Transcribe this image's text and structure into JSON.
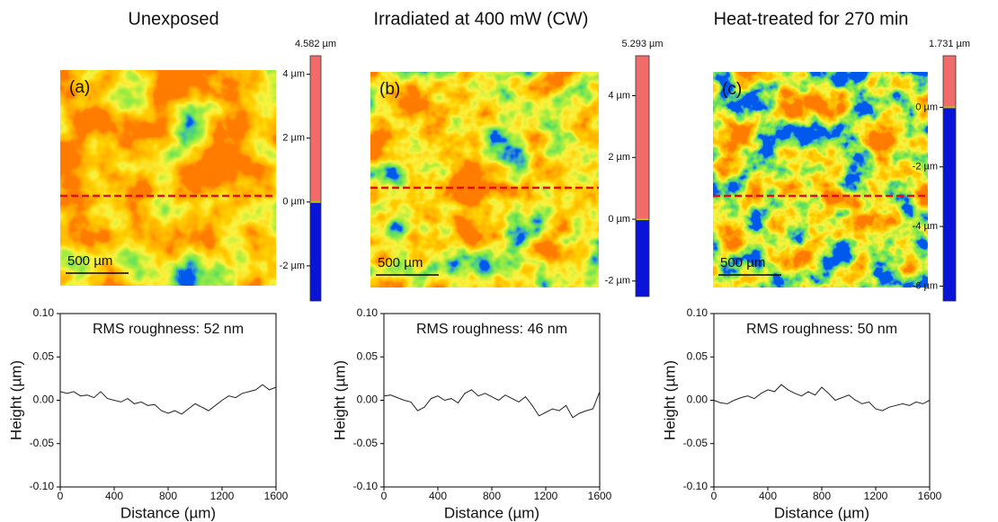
{
  "chart_data": [
    {
      "type": "line",
      "title": "Unexposed",
      "panel_label": "(a)",
      "scale_bar": "500 µm",
      "colorbar": {
        "max_label": "4.582 µm",
        "lim": [
          -3.1,
          4.582
        ],
        "colors": [
          "#f26b6b",
          "#0a14d8"
        ],
        "ticks": [
          {
            "value": 4,
            "label": "4 µm"
          },
          {
            "value": 2,
            "label": "2 µm"
          },
          {
            "value": 0,
            "label": "0 µm"
          },
          {
            "value": -2,
            "label": "-2 µm"
          }
        ]
      },
      "annotation": "RMS roughness: 52 nm",
      "xlabel": "Distance (µm)",
      "ylabel": "Height (µm)",
      "color": "#222222",
      "x": [
        0,
        50,
        100,
        150,
        200,
        250,
        300,
        350,
        400,
        450,
        500,
        550,
        600,
        650,
        700,
        750,
        800,
        850,
        900,
        950,
        1000,
        1050,
        1100,
        1150,
        1200,
        1250,
        1300,
        1350,
        1400,
        1450,
        1500,
        1550,
        1600
      ],
      "values": [
        0.01,
        0.008,
        0.01,
        0.005,
        0.006,
        0.003,
        0.01,
        0.002,
        0.0,
        -0.002,
        0.002,
        -0.004,
        -0.002,
        -0.006,
        -0.005,
        -0.012,
        -0.015,
        -0.012,
        -0.016,
        -0.01,
        -0.004,
        -0.008,
        -0.012,
        -0.006,
        0.0,
        0.005,
        0.003,
        0.008,
        0.01,
        0.012,
        0.018,
        0.012,
        0.015
      ],
      "xlim": [
        0,
        1600
      ],
      "xticks": [
        0,
        400,
        800,
        1200,
        1600
      ],
      "ylim": [
        -0.1,
        0.1
      ],
      "yticks": [
        {
          "value": -0.1,
          "label": "-0.10"
        },
        {
          "value": -0.05,
          "label": "-0.05"
        },
        {
          "value": 0,
          "label": "0.00"
        },
        {
          "value": 0.05,
          "label": "0.05"
        },
        {
          "value": 0.1,
          "label": "0.10"
        }
      ]
    },
    {
      "type": "line",
      "title": "Irradiated at 400 mW (CW)",
      "panel_label": "(b)",
      "scale_bar": "500 µm",
      "colorbar": {
        "max_label": "5.293 µm",
        "lim": [
          -2.5,
          5.293
        ],
        "colors": [
          "#f26b6b",
          "#0a14d8"
        ],
        "ticks": [
          {
            "value": 4,
            "label": "4 µm"
          },
          {
            "value": 2,
            "label": "2 µm"
          },
          {
            "value": 0,
            "label": "0 µm"
          },
          {
            "value": -2,
            "label": "-2 µm"
          }
        ]
      },
      "annotation": "RMS roughness: 46 nm",
      "xlabel": "Distance (µm)",
      "ylabel": "Height (µm)",
      "color": "#222222",
      "x": [
        0,
        50,
        100,
        150,
        200,
        250,
        300,
        350,
        400,
        450,
        500,
        550,
        600,
        650,
        700,
        750,
        800,
        850,
        900,
        950,
        1000,
        1050,
        1100,
        1150,
        1200,
        1250,
        1300,
        1350,
        1400,
        1450,
        1500,
        1550,
        1600
      ],
      "values": [
        0.005,
        0.006,
        0.003,
        0.0,
        -0.002,
        -0.012,
        -0.008,
        0.002,
        0.005,
        0.0,
        0.002,
        -0.003,
        0.008,
        0.012,
        0.005,
        0.008,
        0.004,
        0.0,
        0.006,
        0.002,
        -0.002,
        0.004,
        -0.006,
        -0.018,
        -0.014,
        -0.01,
        -0.012,
        -0.006,
        -0.02,
        -0.015,
        -0.012,
        -0.01,
        0.01
      ],
      "xlim": [
        0,
        1600
      ],
      "xticks": [
        0,
        400,
        800,
        1200,
        1600
      ],
      "ylim": [
        -0.1,
        0.1
      ],
      "yticks": [
        {
          "value": -0.1,
          "label": "-0.10"
        },
        {
          "value": -0.05,
          "label": "-0.05"
        },
        {
          "value": 0,
          "label": "0.00"
        },
        {
          "value": 0.05,
          "label": "0.05"
        },
        {
          "value": 0.1,
          "label": "0.10"
        }
      ]
    },
    {
      "type": "line",
      "title": "Heat-treated for 270 min",
      "panel_label": "(c)",
      "scale_bar": "500 µm",
      "colorbar": {
        "max_label": "1.731 µm",
        "lim": [
          -6.5,
          1.731
        ],
        "colors": [
          "#f26b6b",
          "#0a14d8"
        ],
        "ticks": [
          {
            "value": 0,
            "label": "0 µm"
          },
          {
            "value": -2,
            "label": "-2 µm"
          },
          {
            "value": -4,
            "label": "-4 µm"
          },
          {
            "value": -6,
            "label": "-6 µm"
          }
        ]
      },
      "annotation": "RMS roughness: 50 nm",
      "xlabel": "Distance (µm)",
      "ylabel": "Height (µm)",
      "color": "#222222",
      "x": [
        0,
        50,
        100,
        150,
        200,
        250,
        300,
        350,
        400,
        450,
        500,
        550,
        600,
        650,
        700,
        750,
        800,
        850,
        900,
        950,
        1000,
        1050,
        1100,
        1150,
        1200,
        1250,
        1300,
        1350,
        1400,
        1450,
        1500,
        1550,
        1600
      ],
      "values": [
        0.0,
        -0.003,
        -0.004,
        0.0,
        0.003,
        0.005,
        0.002,
        0.008,
        0.012,
        0.01,
        0.018,
        0.012,
        0.008,
        0.005,
        0.01,
        0.006,
        0.015,
        0.008,
        0.0,
        0.003,
        0.006,
        0.0,
        -0.004,
        -0.002,
        -0.01,
        -0.012,
        -0.008,
        -0.006,
        -0.004,
        -0.006,
        -0.002,
        -0.004,
        0.0
      ],
      "xlim": [
        0,
        1600
      ],
      "xticks": [
        0,
        400,
        800,
        1200,
        1600
      ],
      "ylim": [
        -0.1,
        0.1
      ],
      "yticks": [
        {
          "value": -0.1,
          "label": "-0.10"
        },
        {
          "value": -0.05,
          "label": "-0.05"
        },
        {
          "value": 0,
          "label": "0.00"
        },
        {
          "value": 0.05,
          "label": "0.05"
        },
        {
          "value": 0.1,
          "label": "0.10"
        }
      ]
    }
  ]
}
